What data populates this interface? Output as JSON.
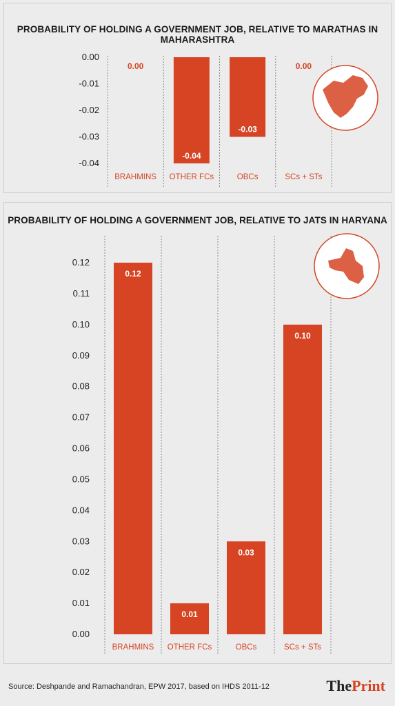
{
  "colors": {
    "bar": "#d64423",
    "panel_bg": "#ececec",
    "grid": "#8a8a8a",
    "axis_text": "#222222",
    "category_text": "#d64423"
  },
  "chart_data": [
    {
      "type": "bar",
      "title": "PROBABILITY OF HOLDING A GOVERNMENT JOB, RELATIVE TO MARATHAS IN MAHARASHTRA",
      "categories": [
        "BRAHMINS",
        "OTHER FCs",
        "OBCs",
        "SCs + STs"
      ],
      "values": [
        0.0,
        -0.04,
        -0.03,
        0.0
      ],
      "value_labels": [
        "0.00",
        "-0.04",
        "-0.03",
        "0.00"
      ],
      "ylim": [
        -0.04,
        0.0
      ],
      "yticks": [
        "0.00",
        "-0.01",
        "-0.02",
        "-0.03",
        "-0.04"
      ],
      "ytick_values": [
        0.0,
        -0.01,
        -0.02,
        -0.03,
        -0.04
      ],
      "grid": "vertical dashed",
      "map_icon": "maharashtra-map-icon"
    },
    {
      "type": "bar",
      "title": "PROBABILITY OF HOLDING A GOVERNMENT JOB, RELATIVE TO JATS IN HARYANA",
      "categories": [
        "BRAHMINS",
        "OTHER FCs",
        "OBCs",
        "SCs + STs"
      ],
      "values": [
        0.12,
        0.01,
        0.03,
        0.1
      ],
      "value_labels": [
        "0.12",
        "0.01",
        "0.03",
        "0.10"
      ],
      "ylim": [
        0.0,
        0.12
      ],
      "yticks": [
        "0.12",
        "0.11",
        "0.10",
        "0.09",
        "0.08",
        "0.07",
        "0.06",
        "0.05",
        "0.04",
        "0.03",
        "0.02",
        "0.01",
        "0.00"
      ],
      "ytick_values": [
        0.12,
        0.11,
        0.1,
        0.09,
        0.08,
        0.07,
        0.06,
        0.05,
        0.04,
        0.03,
        0.02,
        0.01,
        0.0
      ],
      "grid": "vertical dashed",
      "map_icon": "haryana-map-icon"
    }
  ],
  "footer": {
    "source": "Source: Deshpande and Ramachandran, EPW 2017, based on IHDS 2011-12",
    "logo_part1": "The",
    "logo_part2": "Print"
  }
}
